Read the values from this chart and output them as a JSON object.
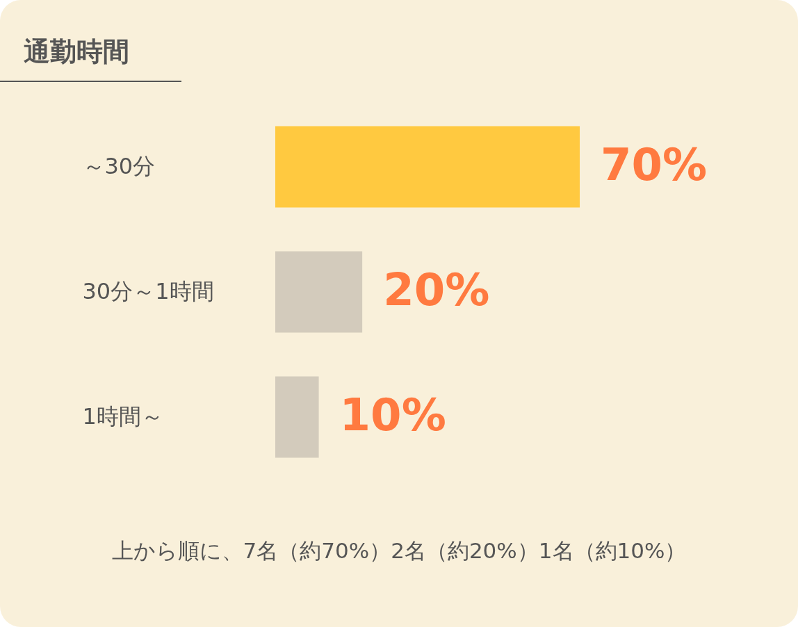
{
  "chart_data": {
    "type": "bar",
    "orientation": "horizontal",
    "title": "通勤時間",
    "categories": [
      "～30分",
      "30分～1時間",
      "1時間～"
    ],
    "values": [
      70,
      20,
      10
    ],
    "colors": [
      "#ffc940",
      "#d3cbbc",
      "#d3cbbc"
    ],
    "value_labels": [
      "70%",
      "20%",
      "10%"
    ],
    "annotations": [
      "上から順に、7名（約70%）2名（約20%）1名（約10%）"
    ],
    "grid": false,
    "legend": false
  }
}
